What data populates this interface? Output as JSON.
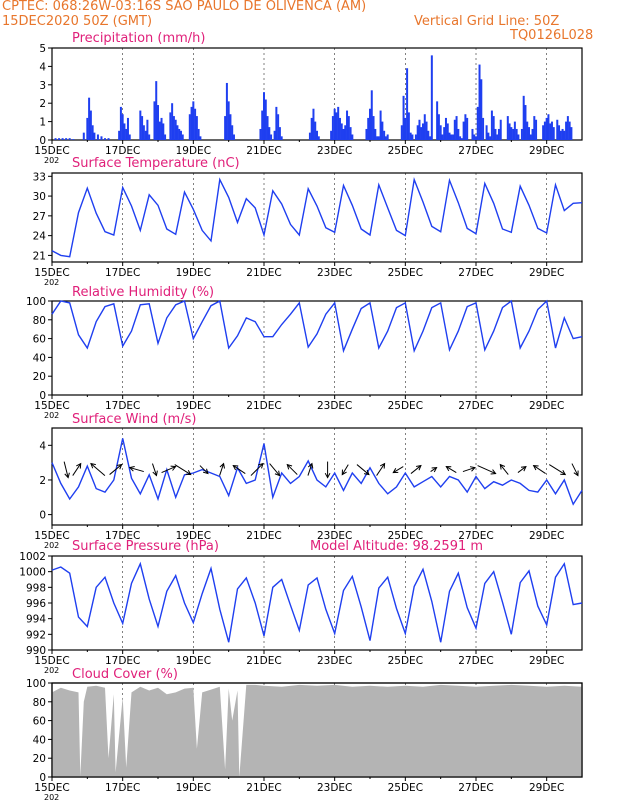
{
  "header": {
    "line1": "CPTEC:   068:26W-03:16S   SAO PAULO DE OLIVENCA (AM)",
    "date": "15DEC2020 50Z (GMT)",
    "grid_note": "Vertical Grid Line: 50Z",
    "run_code": "TQ0126L028"
  },
  "colors": {
    "title": "#e8762c",
    "panel_title": "#e0207a",
    "series": "#1f3ff0",
    "cloud": "#b4b4b4",
    "grid": "#000000"
  },
  "x_axis": {
    "ticks": [
      "15DEC",
      "17DEC",
      "19DEC",
      "21DEC",
      "23DEC",
      "25DEC",
      "27DEC",
      "29DEC"
    ],
    "day_labels": [
      "202"
    ],
    "range_days": [
      0,
      15
    ],
    "tick_days": [
      0,
      2,
      4,
      6,
      8,
      10,
      12,
      14
    ]
  },
  "chart_data": [
    {
      "type": "bar",
      "title": "Precipitation (mm/h)",
      "ylim": [
        0,
        5
      ],
      "yticks": [
        "0",
        "1",
        "2",
        "3",
        "4",
        "5"
      ],
      "x_days": [
        0.1,
        0.2,
        0.3,
        0.4,
        0.5,
        0.6,
        0.9,
        1.0,
        1.05,
        1.1,
        1.15,
        1.2,
        1.3,
        1.4,
        1.5,
        1.6,
        1.9,
        1.95,
        2.0,
        2.05,
        2.1,
        2.15,
        2.2,
        2.5,
        2.55,
        2.6,
        2.65,
        2.7,
        2.75,
        2.9,
        2.95,
        3.0,
        3.05,
        3.1,
        3.15,
        3.2,
        3.35,
        3.4,
        3.45,
        3.5,
        3.55,
        3.6,
        3.65,
        3.7,
        3.9,
        3.95,
        4.0,
        4.05,
        4.1,
        4.15,
        4.2,
        4.9,
        4.95,
        5.0,
        5.05,
        5.1,
        5.15,
        5.9,
        5.95,
        6.0,
        6.05,
        6.1,
        6.15,
        6.2,
        6.3,
        6.35,
        6.4,
        6.45,
        6.5,
        7.3,
        7.35,
        7.4,
        7.45,
        7.5,
        7.55,
        7.9,
        7.95,
        8.0,
        8.05,
        8.1,
        8.15,
        8.2,
        8.25,
        8.3,
        8.35,
        8.4,
        8.45,
        8.5,
        8.9,
        8.95,
        9.0,
        9.05,
        9.1,
        9.15,
        9.2,
        9.25,
        9.3,
        9.35,
        9.4,
        9.45,
        9.5,
        9.9,
        9.95,
        10.0,
        10.05,
        10.1,
        10.15,
        10.2,
        10.3,
        10.35,
        10.4,
        10.45,
        10.5,
        10.55,
        10.6,
        10.65,
        10.7,
        10.75,
        10.9,
        10.95,
        11.0,
        11.05,
        11.1,
        11.15,
        11.2,
        11.25,
        11.3,
        11.35,
        11.4,
        11.45,
        11.5,
        11.55,
        11.6,
        11.65,
        11.7,
        11.75,
        11.9,
        11.95,
        12.0,
        12.05,
        12.1,
        12.15,
        12.2,
        12.3,
        12.35,
        12.4,
        12.45,
        12.5,
        12.55,
        12.6,
        12.65,
        12.7,
        12.9,
        12.95,
        13.0,
        13.05,
        13.1,
        13.15,
        13.2,
        13.3,
        13.35,
        13.4,
        13.45,
        13.5,
        13.55,
        13.6,
        13.65,
        13.7,
        13.9,
        13.95,
        14.0,
        14.05,
        14.1,
        14.15,
        14.2,
        14.3,
        14.35,
        14.4,
        14.45,
        14.5,
        14.55,
        14.6,
        14.65,
        14.7
      ],
      "values": [
        0.1,
        0.1,
        0.1,
        0.1,
        0.1,
        0.05,
        0.4,
        1.2,
        2.3,
        1.6,
        0.8,
        0.4,
        0.3,
        0.2,
        0.1,
        0.1,
        0.5,
        1.8,
        1.4,
        0.9,
        0.6,
        1.2,
        0.3,
        1.6,
        1.3,
        0.8,
        0.5,
        1.1,
        0.3,
        2.1,
        3.2,
        1.9,
        1.0,
        1.2,
        0.9,
        0.3,
        1.5,
        2.0,
        1.3,
        1.1,
        0.8,
        0.6,
        0.5,
        0.3,
        1.4,
        1.8,
        2.1,
        1.7,
        1.3,
        0.6,
        0.2,
        1.3,
        3.1,
        2.1,
        1.4,
        0.8,
        0.3,
        0.6,
        1.6,
        2.6,
        2.2,
        1.3,
        0.7,
        0.3,
        0.5,
        1.8,
        1.4,
        0.7,
        0.2,
        0.4,
        1.2,
        1.7,
        1.0,
        0.5,
        0.2,
        0.5,
        1.3,
        1.7,
        1.5,
        1.8,
        1.2,
        0.9,
        0.6,
        0.8,
        1.6,
        1.3,
        0.7,
        0.3,
        0.6,
        1.2,
        1.7,
        2.7,
        1.3,
        0.6,
        0.2,
        0.2,
        1.6,
        1.0,
        0.5,
        0.2,
        0.3,
        0.8,
        2.4,
        1.2,
        3.9,
        1.5,
        0.4,
        0.3,
        0.3,
        0.8,
        1.1,
        0.7,
        0.9,
        1.4,
        1.0,
        0.5,
        0.2,
        4.6,
        2.1,
        1.4,
        0.8,
        0.3,
        0.7,
        1.2,
        0.9,
        0.4,
        0.3,
        0.3,
        1.1,
        1.3,
        0.6,
        0.2,
        0.1,
        1.0,
        1.4,
        1.2,
        0.6,
        0.3,
        0.2,
        1.8,
        4.1,
        3.3,
        1.2,
        0.8,
        0.4,
        0.2,
        1.6,
        1.3,
        0.6,
        0.3,
        0.6,
        1.1,
        1.3,
        0.9,
        0.7,
        0.6,
        1.0,
        0.6,
        0.3,
        0.6,
        2.4,
        1.9,
        1.0,
        0.7,
        0.3,
        0.6,
        1.3,
        1.1,
        0.8,
        1.0,
        1.2,
        1.4,
        0.9,
        1.0,
        0.7,
        1.1,
        0.8,
        0.5,
        0.6,
        0.5,
        1.0,
        1.3,
        1.0,
        0.7
      ]
    },
    {
      "type": "line",
      "title": "Surface Temperature (nC)",
      "ylim": [
        20,
        33.5
      ],
      "yticks": [
        "21",
        "24",
        "27",
        "30",
        "33"
      ],
      "x_days": [
        0,
        0.25,
        0.5,
        0.75,
        1,
        1.25,
        1.5,
        1.75,
        2,
        2.25,
        2.5,
        2.75,
        3,
        3.25,
        3.5,
        3.75,
        4,
        4.25,
        4.5,
        4.75,
        5,
        5.25,
        5.5,
        5.75,
        6,
        6.25,
        6.5,
        6.75,
        7,
        7.25,
        7.5,
        7.75,
        8,
        8.25,
        8.5,
        8.75,
        9,
        9.25,
        9.5,
        9.75,
        10,
        10.25,
        10.5,
        10.75,
        11,
        11.25,
        11.5,
        11.75,
        12,
        12.25,
        12.5,
        12.75,
        13,
        13.25,
        13.5,
        13.75,
        14,
        14.25,
        14.5,
        14.75,
        15
      ],
      "values": [
        21.7,
        21.0,
        20.8,
        27.5,
        31.2,
        27.4,
        24.6,
        24.1,
        31.3,
        28.5,
        24.8,
        30.2,
        28.6,
        25.0,
        24.2,
        30.6,
        28.0,
        24.8,
        23.2,
        32.5,
        29.8,
        26.0,
        29.6,
        28.2,
        24.1,
        30.8,
        28.8,
        25.7,
        24.1,
        31.1,
        28.5,
        25.2,
        24.5,
        31.6,
        28.6,
        25.0,
        24.1,
        31.7,
        28.2,
        24.8,
        24.0,
        32.5,
        29.1,
        25.4,
        24.6,
        32.4,
        29.0,
        25.1,
        24.3,
        31.9,
        28.9,
        25.0,
        24.5,
        31.5,
        28.6,
        25.1,
        24.4,
        31.7,
        27.8,
        28.9,
        29.0
      ]
    },
    {
      "type": "line",
      "title": "Relative Humidity (%)",
      "ylim": [
        0,
        100
      ],
      "yticks": [
        "0",
        "20",
        "40",
        "60",
        "80",
        "100"
      ],
      "x_days": [
        0,
        0.25,
        0.5,
        0.75,
        1,
        1.25,
        1.5,
        1.75,
        2,
        2.25,
        2.5,
        2.75,
        3,
        3.25,
        3.5,
        3.75,
        4,
        4.25,
        4.5,
        4.75,
        5,
        5.25,
        5.5,
        5.75,
        6,
        6.25,
        6.5,
        6.75,
        7,
        7.25,
        7.5,
        7.75,
        8,
        8.25,
        8.5,
        8.75,
        9,
        9.25,
        9.5,
        9.75,
        10,
        10.25,
        10.5,
        10.75,
        11,
        11.25,
        11.5,
        11.75,
        12,
        12.25,
        12.5,
        12.75,
        13,
        13.25,
        13.5,
        13.75,
        14,
        14.25,
        14.5,
        14.75,
        15
      ],
      "values": [
        86,
        100,
        98,
        64,
        50,
        78,
        94,
        97,
        52,
        68,
        96,
        97,
        55,
        82,
        96,
        100,
        60,
        78,
        95,
        100,
        50,
        63,
        82,
        78,
        62,
        62,
        75,
        86,
        98,
        51,
        65,
        86,
        98,
        47,
        70,
        92,
        98,
        50,
        68,
        93,
        98,
        47,
        68,
        93,
        98,
        48,
        68,
        94,
        98,
        48,
        68,
        93,
        100,
        50,
        68,
        91,
        100,
        50,
        82,
        60,
        62
      ]
    },
    {
      "type": "line",
      "title": "Surface Wind (m/s)",
      "ylim": [
        -0.6,
        5
      ],
      "yticks": [
        "0",
        "2",
        "4"
      ],
      "x_days": [
        0,
        0.25,
        0.5,
        0.75,
        1,
        1.25,
        1.5,
        1.75,
        2,
        2.25,
        2.5,
        2.75,
        3,
        3.25,
        3.5,
        3.75,
        4,
        4.25,
        4.5,
        4.75,
        5,
        5.25,
        5.5,
        5.75,
        6,
        6.25,
        6.5,
        6.75,
        7,
        7.25,
        7.5,
        7.75,
        8,
        8.25,
        8.5,
        8.75,
        9,
        9.25,
        9.5,
        9.75,
        10,
        10.25,
        10.5,
        10.75,
        11,
        11.25,
        11.5,
        11.75,
        12,
        12.25,
        12.5,
        12.75,
        13,
        13.25,
        13.5,
        13.75,
        14,
        14.25,
        14.5,
        14.75,
        15
      ],
      "values": [
        3.0,
        1.8,
        0.9,
        1.6,
        2.8,
        1.5,
        1.3,
        2.0,
        4.4,
        2.1,
        1.2,
        2.3,
        0.9,
        2.6,
        1.0,
        2.3,
        2.4,
        2.6,
        2.4,
        2.2,
        1.1,
        2.7,
        1.8,
        2.0,
        4.1,
        1.0,
        2.4,
        1.8,
        2.2,
        3.1,
        2.0,
        1.6,
        2.4,
        1.4,
        2.4,
        1.8,
        2.7,
        1.8,
        1.2,
        1.6,
        2.4,
        1.6,
        1.9,
        2.2,
        1.6,
        2.2,
        2.0,
        1.3,
        2.2,
        1.5,
        1.9,
        1.7,
        2.0,
        1.8,
        1.4,
        1.3,
        2.0,
        1.2,
        2.0,
        0.6,
        1.4
      ],
      "arrows": [
        {
          "x": 0.4,
          "dx": 0.2,
          "dy": -0.8
        },
        {
          "x": 0.7,
          "dx": 0.4,
          "dy": 0.6
        },
        {
          "x": 1.3,
          "dx": -0.7,
          "dy": 0.6
        },
        {
          "x": 1.8,
          "dx": 0.6,
          "dy": 0.5
        },
        {
          "x": 2.4,
          "dx": -0.7,
          "dy": 0.2
        },
        {
          "x": 2.9,
          "dx": 0.2,
          "dy": -0.6
        },
        {
          "x": 3.3,
          "dx": 0.7,
          "dy": 0.3
        },
        {
          "x": 3.7,
          "dx": 0.8,
          "dy": -0.5
        },
        {
          "x": 4.3,
          "dx": 0.4,
          "dy": -0.4
        },
        {
          "x": 4.8,
          "dx": 0.2,
          "dy": 0.6
        },
        {
          "x": 5.3,
          "dx": -0.6,
          "dy": 0.4
        },
        {
          "x": 5.8,
          "dx": 0.6,
          "dy": 0.6
        },
        {
          "x": 6.3,
          "dx": 0.5,
          "dy": -0.6
        },
        {
          "x": 6.8,
          "dx": -0.5,
          "dy": 0.5
        },
        {
          "x": 7.3,
          "dx": 0.2,
          "dy": 0.6
        },
        {
          "x": 7.8,
          "dx": 0.0,
          "dy": -0.8
        },
        {
          "x": 8.3,
          "dx": -0.3,
          "dy": -0.5
        },
        {
          "x": 8.8,
          "dx": 0.6,
          "dy": -0.5
        },
        {
          "x": 9.3,
          "dx": 0.4,
          "dy": 0.6
        },
        {
          "x": 9.8,
          "dx": -0.5,
          "dy": -0.3
        },
        {
          "x": 10.3,
          "dx": 0.5,
          "dy": 0.4
        },
        {
          "x": 10.8,
          "dx": 0.3,
          "dy": 0.2
        },
        {
          "x": 11.3,
          "dx": -0.5,
          "dy": 0.3
        },
        {
          "x": 11.8,
          "dx": 0.6,
          "dy": 0.2
        },
        {
          "x": 12.3,
          "dx": 0.9,
          "dy": -0.4
        },
        {
          "x": 12.8,
          "dx": -0.4,
          "dy": 0.5
        },
        {
          "x": 13.3,
          "dx": 0.4,
          "dy": 0.3
        },
        {
          "x": 13.8,
          "dx": -0.6,
          "dy": 0.4
        },
        {
          "x": 14.3,
          "dx": 0.8,
          "dy": -0.5
        },
        {
          "x": 14.8,
          "dx": 0.3,
          "dy": -0.6
        }
      ]
    },
    {
      "type": "line",
      "title": "Surface Pressure (hPa)",
      "annotation": "Model Altitude: 98.2591 m",
      "ylim": [
        990,
        1002
      ],
      "yticks": [
        "990",
        "992",
        "994",
        "996",
        "998",
        "1000",
        "1002"
      ],
      "x_days": [
        0,
        0.25,
        0.5,
        0.75,
        1,
        1.25,
        1.5,
        1.75,
        2,
        2.25,
        2.5,
        2.75,
        3,
        3.25,
        3.5,
        3.75,
        4,
        4.25,
        4.5,
        4.75,
        5,
        5.25,
        5.5,
        5.75,
        6,
        6.25,
        6.5,
        6.75,
        7,
        7.25,
        7.5,
        7.75,
        8,
        8.25,
        8.5,
        8.75,
        9,
        9.25,
        9.5,
        9.75,
        10,
        10.25,
        10.5,
        10.75,
        11,
        11.25,
        11.5,
        11.75,
        12,
        12.25,
        12.5,
        12.75,
        13,
        13.25,
        13.5,
        13.75,
        14,
        14.25,
        14.5,
        14.75,
        15
      ],
      "values": [
        1000.2,
        1000.6,
        999.8,
        994.2,
        993.0,
        998.0,
        999.3,
        996.0,
        993.4,
        998.5,
        1001.0,
        996.5,
        993.0,
        997.5,
        999.5,
        996.0,
        993.5,
        997.2,
        1000.4,
        995.2,
        991.0,
        997.8,
        999.2,
        996.0,
        991.8,
        998.0,
        999.0,
        995.7,
        992.5,
        998.3,
        999.2,
        995.2,
        992.1,
        997.6,
        999.4,
        995.5,
        991.2,
        997.9,
        999.3,
        995.3,
        992.1,
        998.1,
        1000.3,
        996.2,
        991.0,
        997.5,
        999.8,
        995.4,
        992.8,
        998.5,
        1000.0,
        996.1,
        992.0,
        998.6,
        1000.1,
        995.6,
        993.2,
        999.3,
        1001.0,
        995.8,
        996.0
      ]
    },
    {
      "type": "area",
      "title": "Cloud Cover (%)",
      "ylim": [
        0,
        100
      ],
      "yticks": [
        "0",
        "20",
        "40",
        "60",
        "80",
        "100"
      ],
      "x_days": [
        0,
        0.25,
        0.5,
        0.75,
        0.8,
        0.9,
        1.0,
        1.25,
        1.5,
        1.6,
        1.75,
        1.8,
        2.0,
        2.1,
        2.25,
        2.5,
        2.75,
        3.0,
        3.25,
        3.5,
        3.75,
        4.0,
        4.1,
        4.25,
        4.5,
        4.75,
        4.9,
        5.0,
        5.1,
        5.25,
        5.3,
        5.5,
        5.75,
        6.0,
        6.5,
        7.0,
        7.5,
        8.0,
        8.5,
        9.0,
        9.5,
        10.0,
        10.5,
        11.0,
        11.5,
        12.0,
        12.5,
        13.0,
        13.5,
        14.0,
        14.5,
        15.0
      ],
      "values": [
        90,
        95,
        92,
        90,
        1,
        80,
        96,
        97,
        95,
        20,
        88,
        5,
        85,
        10,
        90,
        96,
        92,
        95,
        88,
        90,
        94,
        95,
        30,
        90,
        93,
        96,
        8,
        94,
        60,
        92,
        0,
        98,
        98,
        97,
        96,
        98,
        97,
        98,
        96,
        97,
        96,
        97,
        96,
        98,
        97,
        96,
        97,
        98,
        97,
        96,
        97,
        96
      ]
    }
  ]
}
